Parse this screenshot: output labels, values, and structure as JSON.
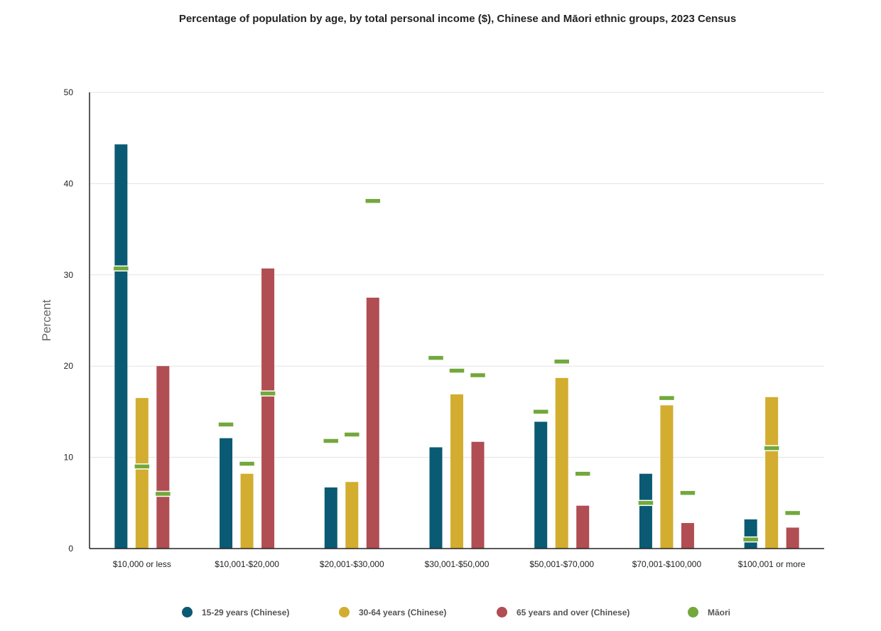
{
  "chart_data": {
    "type": "bar",
    "title": "Percentage of population by age, by total personal income ($), Chinese and Māori ethnic groups, 2023 Census",
    "xlabel": "",
    "ylabel": "Percent",
    "ylim": [
      0,
      50
    ],
    "yticks": [
      0,
      10,
      20,
      30,
      40,
      50
    ],
    "grid": true,
    "legend_position": "bottom",
    "categories": [
      "$10,000 or less",
      "$10,001-$20,000",
      "$20,001-$30,000",
      "$30,001-$50,000",
      "$50,001-$70,000",
      "$70,001-$100,000",
      "$100,001 or more"
    ],
    "series": [
      {
        "name": "15-29 years (Chinese)",
        "color": "#0b5a73",
        "values": [
          44.3,
          12.1,
          6.7,
          11.1,
          13.9,
          8.2,
          3.2
        ]
      },
      {
        "name": "30-64 years (Chinese)",
        "color": "#d3ad2f",
        "values": [
          16.5,
          8.2,
          7.3,
          16.9,
          18.7,
          15.7,
          16.6
        ]
      },
      {
        "name": "65 years and over (Chinese)",
        "color": "#b04e53",
        "values": [
          20.0,
          30.7,
          27.5,
          11.7,
          4.7,
          2.8,
          2.3
        ]
      }
    ],
    "markers": {
      "name": "Māori",
      "color": "#72a83c",
      "values": [
        [
          30.7,
          9.0,
          6.0
        ],
        [
          13.6,
          9.3,
          17.0
        ],
        [
          11.8,
          12.5,
          38.1
        ],
        [
          20.9,
          19.5,
          19.0
        ],
        [
          15.0,
          20.5,
          8.2
        ],
        [
          5.0,
          16.5,
          6.1
        ],
        [
          1.0,
          11.0,
          3.9
        ]
      ]
    }
  }
}
